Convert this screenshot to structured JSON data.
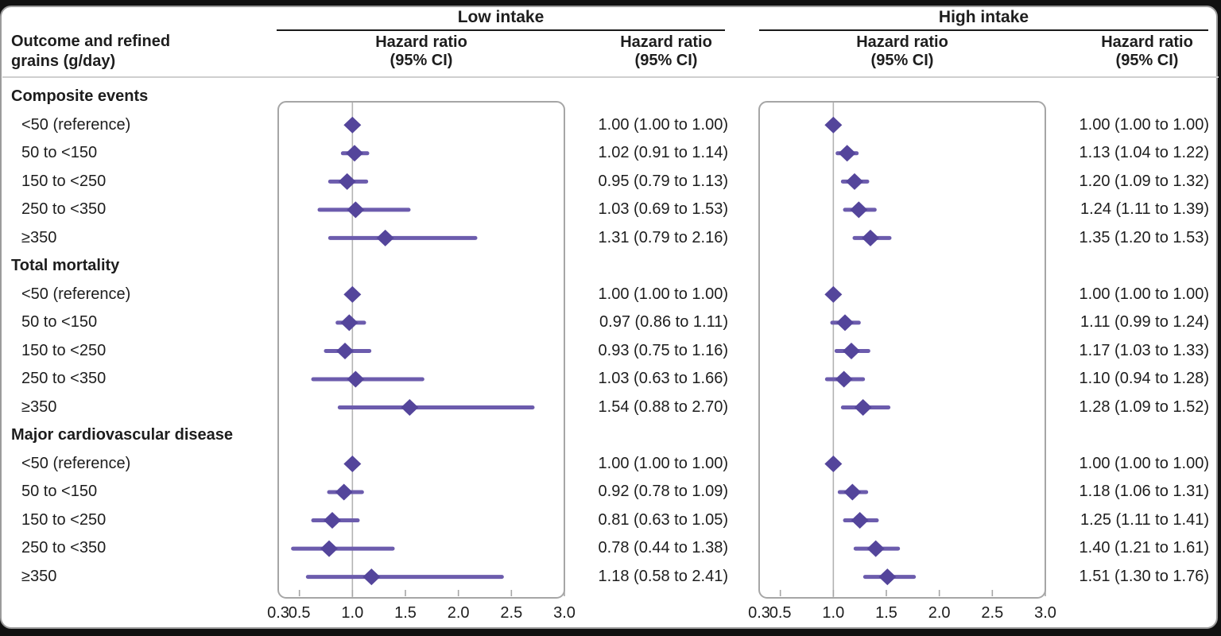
{
  "header": {
    "row_label_title": "Outcome and refined grains (g/day)",
    "groups": [
      {
        "label": "Low intake"
      },
      {
        "label": "High intake"
      }
    ],
    "col_header_line1": "Hazard ratio",
    "col_header_line2": "(95% CI)"
  },
  "chart_data": {
    "type": "forest",
    "axis": {
      "scale": "linear",
      "min": 0.3,
      "max": 3.0,
      "reference": 1.0,
      "tick_values": [
        0.3,
        0.5,
        1.0,
        1.5,
        2.0,
        2.5,
        3.0
      ],
      "tick_labels": [
        "0.3",
        "0.5",
        "1.0",
        "1.5",
        "2.0",
        "2.5",
        "3.0"
      ],
      "tick_marks": [
        0.5,
        1.0,
        1.5,
        2.0,
        2.5,
        3.0
      ]
    },
    "colors": {
      "diamond": "#54459b",
      "ci_line": "#6c5cad",
      "reference_line": "#b3b3b3",
      "box_border": "#a6a6a6"
    },
    "sections": [
      {
        "label": "Composite events",
        "rows": [
          {
            "label": "<50 (reference)",
            "low": {
              "est": 1.0,
              "lo": 1.0,
              "hi": 1.0,
              "text": "1.00 (1.00 to 1.00)"
            },
            "high": {
              "est": 1.0,
              "lo": 1.0,
              "hi": 1.0,
              "text": "1.00 (1.00 to 1.00)"
            }
          },
          {
            "label": "50 to <150",
            "low": {
              "est": 1.02,
              "lo": 0.91,
              "hi": 1.14,
              "text": "1.02 (0.91 to 1.14)"
            },
            "high": {
              "est": 1.13,
              "lo": 1.04,
              "hi": 1.22,
              "text": "1.13 (1.04 to 1.22)"
            }
          },
          {
            "label": "150 to <250",
            "low": {
              "est": 0.95,
              "lo": 0.79,
              "hi": 1.13,
              "text": "0.95 (0.79 to 1.13)"
            },
            "high": {
              "est": 1.2,
              "lo": 1.09,
              "hi": 1.32,
              "text": "1.20 (1.09 to 1.32)"
            }
          },
          {
            "label": "250 to <350",
            "low": {
              "est": 1.03,
              "lo": 0.69,
              "hi": 1.53,
              "text": "1.03 (0.69 to 1.53)"
            },
            "high": {
              "est": 1.24,
              "lo": 1.11,
              "hi": 1.39,
              "text": "1.24 (1.11 to 1.39)"
            }
          },
          {
            "label": "≥350",
            "low": {
              "est": 1.31,
              "lo": 0.79,
              "hi": 2.16,
              "text": "1.31 (0.79 to 2.16)"
            },
            "high": {
              "est": 1.35,
              "lo": 1.2,
              "hi": 1.53,
              "text": "1.35 (1.20 to 1.53)"
            }
          }
        ]
      },
      {
        "label": "Total mortality",
        "rows": [
          {
            "label": "<50 (reference)",
            "low": {
              "est": 1.0,
              "lo": 1.0,
              "hi": 1.0,
              "text": "1.00 (1.00 to 1.00)"
            },
            "high": {
              "est": 1.0,
              "lo": 1.0,
              "hi": 1.0,
              "text": "1.00 (1.00 to 1.00)"
            }
          },
          {
            "label": "50 to <150",
            "low": {
              "est": 0.97,
              "lo": 0.86,
              "hi": 1.11,
              "text": "0.97 (0.86 to 1.11)"
            },
            "high": {
              "est": 1.11,
              "lo": 0.99,
              "hi": 1.24,
              "text": "1.11 (0.99 to 1.24)"
            }
          },
          {
            "label": "150 to <250",
            "low": {
              "est": 0.93,
              "lo": 0.75,
              "hi": 1.16,
              "text": "0.93 (0.75 to 1.16)"
            },
            "high": {
              "est": 1.17,
              "lo": 1.03,
              "hi": 1.33,
              "text": "1.17 (1.03 to 1.33)"
            }
          },
          {
            "label": "250 to <350",
            "low": {
              "est": 1.03,
              "lo": 0.63,
              "hi": 1.66,
              "text": "1.03 (0.63 to 1.66)"
            },
            "high": {
              "est": 1.1,
              "lo": 0.94,
              "hi": 1.28,
              "text": "1.10 (0.94 to 1.28)"
            }
          },
          {
            "label": "≥350",
            "low": {
              "est": 1.54,
              "lo": 0.88,
              "hi": 2.7,
              "text": "1.54 (0.88 to 2.70)"
            },
            "high": {
              "est": 1.28,
              "lo": 1.09,
              "hi": 1.52,
              "text": "1.28 (1.09 to 1.52)"
            }
          }
        ]
      },
      {
        "label": "Major cardiovascular disease",
        "rows": [
          {
            "label": "<50 (reference)",
            "low": {
              "est": 1.0,
              "lo": 1.0,
              "hi": 1.0,
              "text": "1.00 (1.00 to 1.00)"
            },
            "high": {
              "est": 1.0,
              "lo": 1.0,
              "hi": 1.0,
              "text": "1.00 (1.00 to 1.00)"
            }
          },
          {
            "label": "50 to <150",
            "low": {
              "est": 0.92,
              "lo": 0.78,
              "hi": 1.09,
              "text": "0.92 (0.78 to 1.09)"
            },
            "high": {
              "est": 1.18,
              "lo": 1.06,
              "hi": 1.31,
              "text": "1.18 (1.06 to 1.31)"
            }
          },
          {
            "label": "150 to <250",
            "low": {
              "est": 0.81,
              "lo": 0.63,
              "hi": 1.05,
              "text": "0.81 (0.63 to 1.05)"
            },
            "high": {
              "est": 1.25,
              "lo": 1.11,
              "hi": 1.41,
              "text": "1.25 (1.11 to 1.41)"
            }
          },
          {
            "label": "250 to <350",
            "low": {
              "est": 0.78,
              "lo": 0.44,
              "hi": 1.38,
              "text": "0.78 (0.44 to 1.38)"
            },
            "high": {
              "est": 1.4,
              "lo": 1.21,
              "hi": 1.61,
              "text": "1.40 (1.21 to 1.61)"
            }
          },
          {
            "label": "≥350",
            "low": {
              "est": 1.18,
              "lo": 0.58,
              "hi": 2.41,
              "text": "1.18 (0.58 to 2.41)"
            },
            "high": {
              "est": 1.51,
              "lo": 1.3,
              "hi": 1.76,
              "text": "1.51 (1.30 to 1.76)"
            }
          }
        ]
      }
    ]
  }
}
